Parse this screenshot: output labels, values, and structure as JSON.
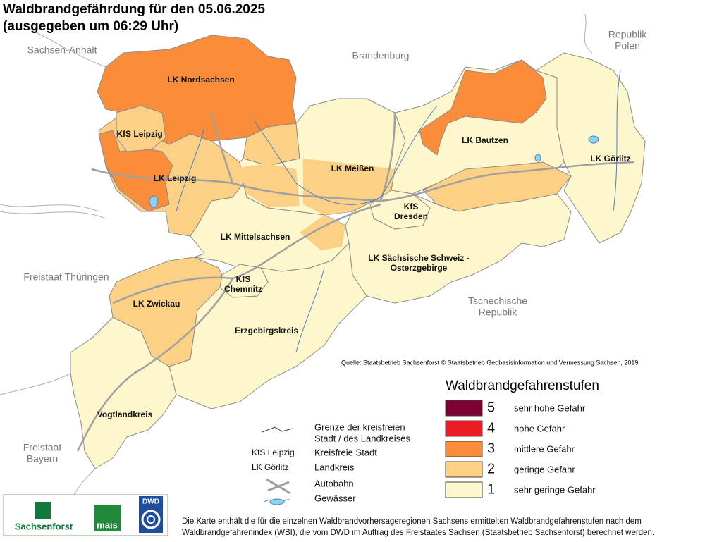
{
  "header": {
    "title": "Waldbrandgefährdung  für den  05.06.2025",
    "subtitle": "(ausgegeben um 06:29 Uhr)"
  },
  "neighbors": [
    {
      "lines": [
        "Sachsen-Anhalt"
      ]
    },
    {
      "lines": [
        "Brandenburg"
      ]
    },
    {
      "lines": [
        "Republik",
        "Polen"
      ]
    },
    {
      "lines": [
        "Freistaat Thüringen"
      ]
    },
    {
      "lines": [
        "Tschechische",
        "Republik"
      ]
    },
    {
      "lines": [
        "Freistaat",
        "Bayern"
      ]
    }
  ],
  "districts": [
    {
      "lines": [
        "LK Nordsachsen"
      ]
    },
    {
      "lines": [
        "KfS Leipzig"
      ]
    },
    {
      "lines": [
        "LK Leipzig"
      ]
    },
    {
      "lines": [
        "LK Meißen"
      ]
    },
    {
      "lines": [
        "LK Bautzen"
      ]
    },
    {
      "lines": [
        "LK Görlitz"
      ]
    },
    {
      "lines": [
        "KfS",
        "Dresden"
      ]
    },
    {
      "lines": [
        "LK Mittelsachsen"
      ]
    },
    {
      "lines": [
        "LK Sächsische Schweiz -",
        "Osterzgebirge"
      ]
    },
    {
      "lines": [
        "KfS",
        "Chemnitz"
      ]
    },
    {
      "lines": [
        "LK Zwickau"
      ]
    },
    {
      "lines": [
        "Erzgebirgskreis"
      ]
    },
    {
      "lines": [
        "Vogtlandkreis"
      ]
    }
  ],
  "source": "Quelle: Staatsbetrieb Sachsenforst  © Staatsbetrieb Geobasisinformation und Vermessung Sachsen, 2019",
  "legend": {
    "title": "Waldbrandgefahrenstufen",
    "classes": [
      {
        "level": 5,
        "label": "sehr hohe Gefahr",
        "color": "#7d0033"
      },
      {
        "level": 4,
        "label": "hohe Gefahr",
        "color": "#ec1c24"
      },
      {
        "level": 3,
        "label": "mittlere Gefahr",
        "color": "#fb8c3a"
      },
      {
        "level": 2,
        "label": "geringe Gefahr",
        "color": "#fcd185"
      },
      {
        "level": 1,
        "label": "sehr geringe Gefahr",
        "color": "#fef7cc"
      }
    ]
  },
  "symbols": [
    {
      "lines": [
        "Grenze der kreisfreien",
        " Stadt / des Landkreises"
      ]
    },
    {
      "example": "KfS Leipzig",
      "label": "Kreisfreie Stadt"
    },
    {
      "example": "LK Görlitz",
      "label": "Landkreis"
    },
    {
      "label": "Autobahn"
    },
    {
      "label": "Gewässer"
    }
  ],
  "logos": [
    "Sachsenforst",
    "mais",
    "DWD"
  ],
  "footnote": [
    "Die Karte enthält die für die einzelnen Waldbrandvorhersageregionen Sachsens ermittelten Waldbrandgefahrenstufen nach dem",
    "Waldbrandgefahrenindex (WBI), die vom DWD im Auftrag des Freistaates Sachsen (Staatsbetrieb Sachsenforst) berechnet werden."
  ]
}
